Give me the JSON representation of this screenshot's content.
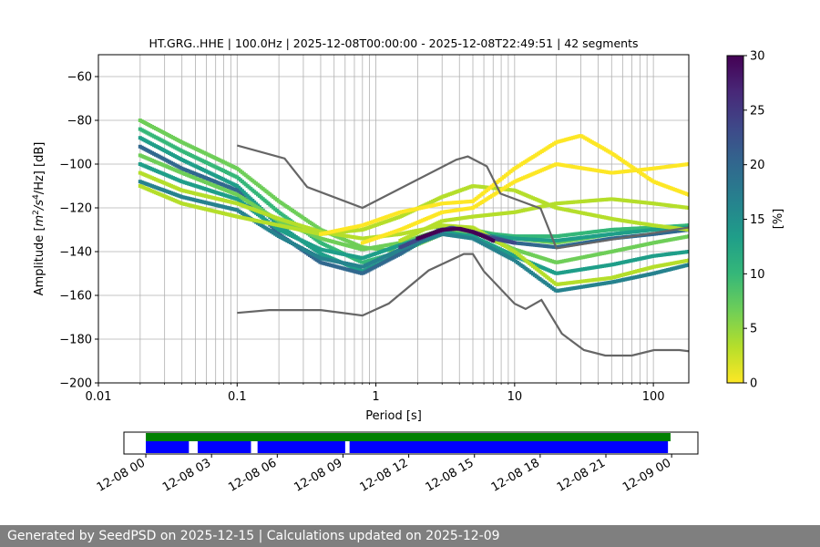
{
  "footer": {
    "text": "Generated by SeedPSD on 2025-12-15 | Calculations updated on 2025-12-09"
  },
  "chart_data": [
    {
      "type": "heatmap",
      "title": "HT.GRG..HHE | 100.0Hz | 2025-12-08T00:00:00 - 2025-12-08T22:49:51 | 42 segments",
      "xlabel": "Period [s]",
      "ylabel_parts": [
        "Amplitude [",
        "m",
        "2",
        "/s",
        "4",
        "/Hz] [dB]"
      ],
      "xscale": "log",
      "xlim": [
        0.01,
        180
      ],
      "ylim": [
        -200,
        -50
      ],
      "xticks": [
        {
          "v": 0.01,
          "label": "0.01"
        },
        {
          "v": 0.1,
          "label": "0.1"
        },
        {
          "v": 1,
          "label": "1"
        },
        {
          "v": 10,
          "label": "10"
        },
        {
          "v": 100,
          "label": "100"
        }
      ],
      "yticks": [
        {
          "v": -60,
          "label": "−60"
        },
        {
          "v": -80,
          "label": "−80"
        },
        {
          "v": -100,
          "label": "−100"
        },
        {
          "v": -120,
          "label": "−120"
        },
        {
          "v": -140,
          "label": "−140"
        },
        {
          "v": -160,
          "label": "−160"
        },
        {
          "v": -180,
          "label": "−180"
        },
        {
          "v": -200,
          "label": "−200"
        }
      ],
      "grid": true,
      "colorbar": {
        "label": "[%]",
        "range": [
          0,
          30
        ],
        "ticks": [
          {
            "v": 0,
            "label": "0"
          },
          {
            "v": 5,
            "label": "5"
          },
          {
            "v": 10,
            "label": "10"
          },
          {
            "v": 15,
            "label": "15"
          },
          {
            "v": 20,
            "label": "20"
          },
          {
            "v": 25,
            "label": "25"
          },
          {
            "v": 30,
            "label": "30"
          }
        ],
        "colormap": [
          "#fde725",
          "#b5de2b",
          "#6ece58",
          "#35b779",
          "#1f9e89",
          "#26828e",
          "#31688e",
          "#3e4989",
          "#482878",
          "#440154"
        ]
      },
      "noise_models": [
        {
          "name": "high_noise",
          "points": [
            [
              0.1,
              -91.5
            ],
            [
              0.22,
              -97.4
            ],
            [
              0.32,
              -110.5
            ],
            [
              0.8,
              -120
            ],
            [
              3.8,
              -98
            ],
            [
              4.6,
              -96.5
            ],
            [
              6.3,
              -101
            ],
            [
              7.9,
              -113.5
            ],
            [
              15.4,
              -120.3
            ],
            [
              20,
              -138.5
            ],
            [
              354,
              -126
            ]
          ]
        },
        {
          "name": "low_noise",
          "points": [
            [
              0.1,
              -168
            ],
            [
              0.17,
              -166.7
            ],
            [
              0.4,
              -166.7
            ],
            [
              0.8,
              -169.2
            ],
            [
              1.24,
              -163.7
            ],
            [
              2.4,
              -148.6
            ],
            [
              4.3,
              -141.1
            ],
            [
              5,
              -141.1
            ],
            [
              6,
              -149
            ],
            [
              10,
              -163.8
            ],
            [
              12,
              -166.2
            ],
            [
              15.6,
              -162.1
            ],
            [
              21.9,
              -177.5
            ],
            [
              31.6,
              -185
            ],
            [
              45,
              -187.5
            ],
            [
              70,
              -187.5
            ],
            [
              101,
              -185
            ],
            [
              154,
              -185
            ],
            [
              328,
              -187.5
            ]
          ]
        }
      ],
      "ppsd_traces": [
        {
          "pct": 6,
          "points": [
            [
              0.02,
              -80
            ],
            [
              0.04,
              -90
            ],
            [
              0.1,
              -102
            ],
            [
              0.2,
              -117
            ],
            [
              0.4,
              -130
            ],
            [
              0.8,
              -138
            ],
            [
              1.5,
              -140
            ],
            [
              3,
              -132
            ],
            [
              5,
              -130
            ],
            [
              10,
              -134
            ],
            [
              20,
              -136
            ],
            [
              50,
              -132
            ],
            [
              100,
              -130
            ],
            [
              180,
              -128
            ]
          ]
        },
        {
          "pct": 10,
          "points": [
            [
              0.02,
              -84
            ],
            [
              0.04,
              -94
            ],
            [
              0.1,
              -106
            ],
            [
              0.2,
              -122
            ],
            [
              0.4,
              -136
            ],
            [
              0.8,
              -145
            ],
            [
              1.5,
              -140
            ],
            [
              3,
              -131
            ],
            [
              5,
              -131
            ],
            [
              10,
              -133
            ],
            [
              20,
              -133
            ],
            [
              50,
              -130
            ],
            [
              100,
              -129
            ],
            [
              180,
              -128
            ]
          ]
        },
        {
          "pct": 14,
          "points": [
            [
              0.02,
              -88
            ],
            [
              0.04,
              -98
            ],
            [
              0.1,
              -110
            ],
            [
              0.2,
              -128
            ],
            [
              0.4,
              -141
            ],
            [
              0.8,
              -149
            ],
            [
              1.5,
              -141
            ],
            [
              3,
              -130
            ],
            [
              5,
              -132
            ],
            [
              10,
              -134
            ],
            [
              20,
              -135
            ],
            [
              50,
              -132
            ],
            [
              100,
              -130
            ],
            [
              180,
              -129
            ]
          ]
        },
        {
          "pct": 18,
          "points": [
            [
              0.02,
              -92
            ],
            [
              0.04,
              -102
            ],
            [
              0.1,
              -112
            ],
            [
              0.2,
              -132
            ],
            [
              0.4,
              -145
            ],
            [
              0.8,
              -150
            ],
            [
              1.5,
              -141
            ],
            [
              3,
              -129
            ],
            [
              5,
              -131
            ],
            [
              10,
              -136
            ],
            [
              20,
              -138
            ],
            [
              50,
              -134
            ],
            [
              100,
              -132
            ],
            [
              180,
              -130
            ]
          ]
        },
        {
          "pct": 8,
          "points": [
            [
              0.02,
              -96
            ],
            [
              0.04,
              -104
            ],
            [
              0.1,
              -114
            ],
            [
              0.2,
              -126
            ],
            [
              0.4,
              -134
            ],
            [
              0.8,
              -139
            ],
            [
              1.5,
              -136
            ],
            [
              3,
              -130
            ],
            [
              5,
              -131
            ],
            [
              10,
              -139
            ],
            [
              20,
              -145
            ],
            [
              50,
              -140
            ],
            [
              100,
              -136
            ],
            [
              180,
              -133
            ]
          ]
        },
        {
          "pct": 12,
          "points": [
            [
              0.02,
              -100
            ],
            [
              0.04,
              -108
            ],
            [
              0.1,
              -116
            ],
            [
              0.2,
              -130
            ],
            [
              0.4,
              -139
            ],
            [
              0.8,
              -143
            ],
            [
              1.5,
              -137
            ],
            [
              3,
              -131
            ],
            [
              5,
              -133
            ],
            [
              10,
              -142
            ],
            [
              20,
              -150
            ],
            [
              50,
              -146
            ],
            [
              100,
              -142
            ],
            [
              180,
              -140
            ]
          ]
        },
        {
          "pct": 4,
          "points": [
            [
              0.02,
              -104
            ],
            [
              0.04,
              -112
            ],
            [
              0.1,
              -118
            ],
            [
              0.2,
              -125
            ],
            [
              0.4,
              -131
            ],
            [
              0.8,
              -134
            ],
            [
              1.5,
              -132
            ],
            [
              3,
              -128
            ],
            [
              5,
              -129
            ],
            [
              10,
              -140
            ],
            [
              20,
              -155
            ],
            [
              50,
              -152
            ],
            [
              100,
              -147
            ],
            [
              180,
              -144
            ]
          ]
        },
        {
          "pct": 16,
          "points": [
            [
              0.02,
              -108
            ],
            [
              0.04,
              -115
            ],
            [
              0.1,
              -121
            ],
            [
              0.2,
              -133
            ],
            [
              0.4,
              -143
            ],
            [
              0.8,
              -147
            ],
            [
              1.5,
              -139
            ],
            [
              3,
              -132
            ],
            [
              5,
              -134
            ],
            [
              10,
              -144
            ],
            [
              20,
              -158
            ],
            [
              50,
              -154
            ],
            [
              100,
              -150
            ],
            [
              180,
              -146
            ]
          ]
        },
        {
          "pct": 3,
          "points": [
            [
              0.02,
              -110
            ],
            [
              0.04,
              -118
            ],
            [
              0.1,
              -124
            ],
            [
              0.2,
              -128
            ],
            [
              0.4,
              -132
            ],
            [
              0.8,
              -130
            ],
            [
              1.5,
              -124
            ],
            [
              3,
              -115
            ],
            [
              5,
              -110
            ],
            [
              10,
              -112
            ],
            [
              20,
              -120
            ],
            [
              50,
              -125
            ],
            [
              100,
              -128
            ],
            [
              180,
              -130
            ]
          ]
        },
        {
          "pct": 2,
          "points": [
            [
              0.4,
              -132
            ],
            [
              0.8,
              -128
            ],
            [
              1.5,
              -122
            ],
            [
              3,
              -118
            ],
            [
              5,
              -117
            ],
            [
              10,
              -102
            ],
            [
              20,
              -90
            ],
            [
              30,
              -87
            ],
            [
              50,
              -95
            ],
            [
              100,
              -108
            ],
            [
              180,
              -114
            ]
          ]
        },
        {
          "pct": 2,
          "points": [
            [
              0.8,
              -136
            ],
            [
              1.5,
              -130
            ],
            [
              3,
              -122
            ],
            [
              5,
              -120
            ],
            [
              10,
              -108
            ],
            [
              20,
              -100
            ],
            [
              50,
              -104
            ],
            [
              100,
              -102
            ],
            [
              180,
              -100
            ]
          ]
        },
        {
          "pct": 3,
          "points": [
            [
              1.5,
              -135
            ],
            [
              3,
              -126
            ],
            [
              5,
              -124
            ],
            [
              10,
              -122
            ],
            [
              20,
              -118
            ],
            [
              50,
              -116
            ],
            [
              100,
              -118
            ],
            [
              180,
              -120
            ]
          ]
        },
        {
          "pct": 22,
          "points": [
            [
              1.5,
              -138
            ],
            [
              2.5,
              -132
            ],
            [
              3.5,
              -129
            ],
            [
              5,
              -131
            ],
            [
              7,
              -134
            ],
            [
              10,
              -136
            ]
          ]
        },
        {
          "pct": 28,
          "points": [
            [
              2,
              -134
            ],
            [
              3,
              -130
            ],
            [
              4,
              -129.5
            ],
            [
              5,
              -131
            ],
            [
              6,
              -133
            ],
            [
              7,
              -135
            ]
          ]
        }
      ],
      "timeline": {
        "xlim": [
          "2025-12-07T23:00",
          "2025-12-09T01:12"
        ],
        "xticks": [
          {
            "t": "2025-12-08T00:00",
            "label": "12-08 00"
          },
          {
            "t": "2025-12-08T03:00",
            "label": "12-08 03"
          },
          {
            "t": "2025-12-08T06:00",
            "label": "12-08 06"
          },
          {
            "t": "2025-12-08T09:00",
            "label": "12-08 09"
          },
          {
            "t": "2025-12-08T12:00",
            "label": "12-08 12"
          },
          {
            "t": "2025-12-08T15:00",
            "label": "12-08 15"
          },
          {
            "t": "2025-12-08T18:00",
            "label": "12-08 18"
          },
          {
            "t": "2025-12-08T21:00",
            "label": "12-08 21"
          },
          {
            "t": "2025-12-09T00:00",
            "label": "12-09 00"
          }
        ],
        "data_available": {
          "color": "#008000",
          "spans": [
            [
              "2025-12-08T00:00",
              "2025-12-08T23:57"
            ]
          ]
        },
        "used_segments": {
          "color": "#0000ff",
          "spans": [
            [
              "2025-12-08T00:00",
              "2025-12-08T01:58"
            ],
            [
              "2025-12-08T02:22",
              "2025-12-08T04:48"
            ],
            [
              "2025-12-08T05:06",
              "2025-12-08T09:06"
            ],
            [
              "2025-12-08T09:18",
              "2025-12-08T23:50"
            ]
          ]
        }
      }
    }
  ]
}
